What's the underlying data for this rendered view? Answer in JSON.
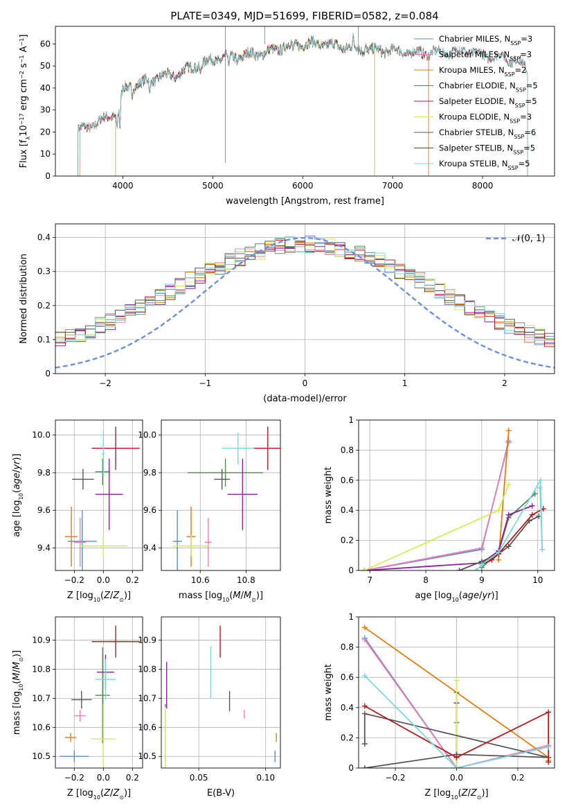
{
  "figure_title": "PLATE=0349, MJD=51699, FIBERID=0582, z=0.084",
  "colors": {
    "Chabrier MILES": "#5b8cc7",
    "Salpeter MILES": "#e97fb0",
    "Kroupa MILES": "#e07b12",
    "Chabrier ELODIE": "#4e8a52",
    "Salpeter ELODIE": "#8b1f9e",
    "Kroupa ELODIE": "#d6ea5e",
    "Chabrier STELIB": "#555555",
    "Salpeter STELIB": "#b01c1c",
    "Kroupa STELIB": "#7fd6d9"
  },
  "chart_data": [
    {
      "id": "spectrum",
      "type": "line",
      "title": "PLATE=0349, MJD=51699, FIBERID=0582, z=0.084",
      "xlabel": "wavelength [Angstrom, rest frame]",
      "ylabel": "Flux [f_λ 10^-17 erg cm^-2 s^-1 A^-1]",
      "xlim": [
        3250,
        8800
      ],
      "ylim": [
        0,
        68
      ],
      "xticks": [
        4000,
        5000,
        6000,
        7000,
        8000
      ],
      "yticks": [
        0,
        10,
        20,
        30,
        40,
        50,
        60
      ],
      "grid": false,
      "legend_position": "top-right",
      "legend": [
        {
          "label": "Chabrier MILES, N",
          "sub": "SSP",
          "tail": "=3"
        },
        {
          "label": "Salpeter MILES, N",
          "sub": "SSP",
          "tail": "=3"
        },
        {
          "label": "Kroupa MILES, N",
          "sub": "SSP",
          "tail": "=2"
        },
        {
          "label": "Chabrier ELODIE, N",
          "sub": "SSP",
          "tail": "=5"
        },
        {
          "label": "Salpeter ELODIE, N",
          "sub": "SSP",
          "tail": "=5"
        },
        {
          "label": "Kroupa ELODIE, N",
          "sub": "SSP",
          "tail": "=3"
        },
        {
          "label": "Chabrier STELIB, N",
          "sub": "SSP",
          "tail": "=6"
        },
        {
          "label": "Salpeter STELIB, N",
          "sub": "SSP",
          "tail": "=5"
        },
        {
          "label": "Kroupa STELIB, N",
          "sub": "SSP",
          "tail": "=5"
        }
      ],
      "continuum": [
        [
          3520,
          21
        ],
        [
          3600,
          22
        ],
        [
          3700,
          24
        ],
        [
          3800,
          26
        ],
        [
          3900,
          28
        ],
        [
          3950,
          29
        ],
        [
          4000,
          39
        ],
        [
          4100,
          41
        ],
        [
          4200,
          42
        ],
        [
          4400,
          45
        ],
        [
          4600,
          46
        ],
        [
          4800,
          50
        ],
        [
          4900,
          51
        ],
        [
          5000,
          53
        ],
        [
          5200,
          54
        ],
        [
          5400,
          55
        ],
        [
          5600,
          56
        ],
        [
          5800,
          59
        ],
        [
          6000,
          60
        ],
        [
          6200,
          60
        ],
        [
          6400,
          59
        ],
        [
          6600,
          58
        ],
        [
          6800,
          57
        ],
        [
          7000,
          57
        ],
        [
          7200,
          56
        ],
        [
          7400,
          56
        ],
        [
          7600,
          56
        ],
        [
          7800,
          57
        ],
        [
          8000,
          55
        ],
        [
          8200,
          54
        ],
        [
          8400,
          52
        ],
        [
          8500,
          48
        ]
      ],
      "features": [
        [
          3934,
          -7
        ],
        [
          3968,
          -10
        ],
        [
          4102,
          -5
        ],
        [
          4300,
          -7
        ],
        [
          4861,
          -4
        ],
        [
          5175,
          -6
        ],
        [
          5270,
          -3
        ],
        [
          5890,
          -4
        ],
        [
          6563,
          4
        ],
        [
          6700,
          3
        ]
      ],
      "series": [
        {
          "name": "Chabrier MILES",
          "range": [
            3500,
            7400
          ]
        },
        {
          "name": "Salpeter MILES",
          "range": [
            3500,
            7400
          ]
        },
        {
          "name": "Kroupa MILES",
          "range": [
            3520,
            7400
          ]
        },
        {
          "name": "Chabrier ELODIE",
          "range": [
            3920,
            6800
          ]
        },
        {
          "name": "Salpeter ELODIE",
          "range": [
            3920,
            6800
          ]
        },
        {
          "name": "Kroupa ELODIE",
          "range": [
            3920,
            6800
          ]
        },
        {
          "name": "Chabrier STELIB",
          "range": [
            3500,
            8500
          ]
        },
        {
          "name": "Salpeter STELIB",
          "range": [
            3500,
            8500
          ]
        },
        {
          "name": "Kroupa STELIB",
          "range": [
            3500,
            8500
          ]
        }
      ]
    },
    {
      "id": "residuals",
      "type": "area",
      "xlabel": "(data-model)/error",
      "ylabel": "Normed distribution",
      "xlim": [
        -2.5,
        2.5
      ],
      "ylim": [
        0,
        0.44
      ],
      "xticks": [
        -2,
        -1,
        0,
        1,
        2
      ],
      "xtick_labels": [
        "−2",
        "−1",
        "0",
        "1",
        "2"
      ],
      "yticks": [
        0.0,
        0.1,
        0.2,
        0.3,
        0.4
      ],
      "grid": true,
      "legend_position": "top-right",
      "legend_label": "𝒩(0, 1)",
      "normal_color": "#6a8fe0",
      "bin_width": 0.1,
      "note": "step histograms of residuals, one per model, approximately N(0,1)-like"
    },
    {
      "id": "age_vs_Z",
      "type": "scatter",
      "xlabel": "Z [log10(Z/Z⊙)]",
      "ylabel": "age  [log10(age/yr)]",
      "xlim": [
        -0.33,
        0.27
      ],
      "ylim": [
        9.28,
        10.08
      ],
      "xticks": [
        -0.2,
        0.0,
        0.2
      ],
      "xtick_labels": [
        "−0.2",
        "0.0",
        "0.2"
      ],
      "yticks": [
        9.4,
        9.6,
        9.8,
        10.0
      ],
      "yticks_labels": [
        "9.4",
        "9.6",
        "9.8",
        "10.0"
      ],
      "grid": true,
      "points": [
        {
          "series": "Chabrier MILES",
          "x": -0.145,
          "xerr": 0.1,
          "y": 9.435,
          "yerr": 0.165
        },
        {
          "series": "Salpeter MILES",
          "x": -0.16,
          "xerr": 0.04,
          "y": 9.43,
          "yerr": 0.13
        },
        {
          "series": "Kroupa MILES",
          "x": -0.22,
          "xerr": 0.045,
          "y": 9.46,
          "yerr": 0.16
        },
        {
          "series": "Chabrier ELODIE",
          "x": -0.005,
          "xerr": 0.05,
          "y": 9.805,
          "yerr": 0.07
        },
        {
          "series": "Salpeter ELODIE",
          "x": 0.04,
          "xerr": 0.095,
          "y": 9.685,
          "yerr": 0.19
        },
        {
          "series": "Kroupa ELODIE",
          "x": 0.0,
          "xerr": 0.165,
          "y": 9.41,
          "yerr": 0.055
        },
        {
          "series": "Chabrier STELIB",
          "x": -0.14,
          "xerr": 0.075,
          "y": 9.765,
          "yerr": 0.055
        },
        {
          "series": "Salpeter STELIB",
          "x": 0.085,
          "xerr": 0.165,
          "y": 9.93,
          "yerr": 0.115
        },
        {
          "series": "Kroupa STELIB",
          "x": 0.0,
          "xerr": 0.01,
          "y": 9.9,
          "yerr": 0.12
        }
      ]
    },
    {
      "id": "age_vs_mass",
      "type": "scatter",
      "xlabel": "mass [log10(M/M⊙)]",
      "ylabel": "",
      "xlim": [
        10.43,
        10.95
      ],
      "ylim": [
        9.28,
        10.08
      ],
      "xticks": [
        10.6,
        10.8
      ],
      "xtick_labels": [
        "10.6",
        "10.8"
      ],
      "yticks": [
        9.4,
        9.6,
        9.8,
        10.0
      ],
      "yticks_labels": [
        "9.4",
        "9.6",
        "9.8",
        "10.0"
      ],
      "grid": true,
      "points": [
        {
          "series": "Chabrier MILES",
          "x": 10.5,
          "xerr": 0.02,
          "y": 9.435,
          "yerr": 0.165
        },
        {
          "series": "Salpeter MILES",
          "x": 10.635,
          "xerr": 0.015,
          "y": 9.43,
          "yerr": 0.13
        },
        {
          "series": "Kroupa MILES",
          "x": 10.56,
          "xerr": 0.02,
          "y": 9.46,
          "yerr": 0.16
        },
        {
          "series": "Chabrier ELODIE",
          "x": 10.71,
          "xerr": 0.165,
          "y": 9.8,
          "yerr": 0.075
        },
        {
          "series": "Salpeter ELODIE",
          "x": 10.785,
          "xerr": 0.065,
          "y": 9.685,
          "yerr": 0.19
        },
        {
          "series": "Kroupa ELODIE",
          "x": 10.56,
          "xerr": 0.08,
          "y": 9.41,
          "yerr": 0.055
        },
        {
          "series": "Chabrier STELIB",
          "x": 10.695,
          "xerr": 0.035,
          "y": 9.765,
          "yerr": 0.055
        },
        {
          "series": "Salpeter STELIB",
          "x": 10.895,
          "xerr": 0.06,
          "y": 9.93,
          "yerr": 0.115
        },
        {
          "series": "Kroupa STELIB",
          "x": 10.765,
          "xerr": 0.07,
          "y": 9.93,
          "yerr": 0.085
        }
      ]
    },
    {
      "id": "mass_weight_vs_age",
      "type": "line",
      "xlabel": "age  [log10(age/yr)]",
      "ylabel": "mass weight",
      "xlim": [
        6.8,
        10.3
      ],
      "ylim": [
        0.0,
        1.0
      ],
      "xticks": [
        7,
        8,
        9,
        10
      ],
      "yticks": [
        0.0,
        0.2,
        0.4,
        0.6,
        0.8,
        1.0
      ],
      "grid": true,
      "series": [
        {
          "name": "Chabrier MILES",
          "x": [
            6.9,
            9.0,
            9.48
          ],
          "y": [
            0.0,
            0.14,
            0.86
          ]
        },
        {
          "name": "Salpeter MILES",
          "x": [
            6.9,
            9.0,
            9.48
          ],
          "y": [
            0.0,
            0.15,
            0.85
          ]
        },
        {
          "name": "Kroupa MILES",
          "x": [
            9.3,
            9.48
          ],
          "y": [
            0.07,
            0.93
          ]
        },
        {
          "name": "Chabrier ELODIE",
          "x": [
            9.0,
            9.3,
            9.48,
            9.95
          ],
          "y": [
            0.02,
            0.12,
            0.35,
            0.51
          ]
        },
        {
          "name": "Salpeter ELODIE",
          "x": [
            6.9,
            9.0,
            9.3,
            9.48,
            9.9
          ],
          "y": [
            0.0,
            0.05,
            0.13,
            0.37,
            0.43
          ]
        },
        {
          "name": "Kroupa ELODIE",
          "x": [
            6.9,
            9.3,
            9.48
          ],
          "y": [
            0.0,
            0.4,
            0.57
          ]
        },
        {
          "name": "Chabrier STELIB",
          "x": [
            8.6,
            9.0,
            9.3,
            9.48,
            9.85,
            10.02
          ],
          "y": [
            0.0,
            0.06,
            0.11,
            0.16,
            0.33,
            0.36
          ]
        },
        {
          "name": "Salpeter STELIB",
          "x": [
            9.0,
            9.18,
            9.3,
            9.9,
            10.1
          ],
          "y": [
            0.04,
            0.07,
            0.11,
            0.37,
            0.41
          ]
        },
        {
          "name": "Kroupa STELIB",
          "x": [
            8.9,
            9.0,
            9.3,
            10.05,
            10.08,
            10.04
          ],
          "y": [
            0.0,
            0.04,
            0.12,
            0.6,
            0.14,
            0.55
          ]
        }
      ]
    },
    {
      "id": "mass_vs_Z",
      "type": "scatter",
      "xlabel": "Z [log10(Z/Z⊙)]",
      "ylabel": "mass [log10(M/M⊙)]",
      "xlim": [
        -0.33,
        0.27
      ],
      "ylim": [
        10.46,
        10.98
      ],
      "xticks": [
        -0.2,
        0.0,
        0.2
      ],
      "xtick_labels": [
        "−0.2",
        "0.0",
        "0.2"
      ],
      "yticks": [
        10.5,
        10.6,
        10.7,
        10.8,
        10.9
      ],
      "yticks_labels": [
        "10.5",
        "10.6",
        "10.7",
        "10.8",
        "10.9"
      ],
      "grid": true,
      "points": [
        {
          "series": "Chabrier MILES",
          "x": -0.2,
          "xerr": 0.1,
          "y": 10.5,
          "yerr": 0.02
        },
        {
          "series": "Salpeter MILES",
          "x": -0.16,
          "xerr": 0.04,
          "y": 10.64,
          "yerr": 0.02
        },
        {
          "series": "Kroupa MILES",
          "x": -0.225,
          "xerr": 0.04,
          "y": 10.565,
          "yerr": 0.015
        },
        {
          "series": "Chabrier ELODIE",
          "x": -0.005,
          "xerr": 0.05,
          "y": 10.71,
          "yerr": 0.165
        },
        {
          "series": "Salpeter ELODIE",
          "x": 0.015,
          "xerr": 0.06,
          "y": 10.79,
          "yerr": 0.06
        },
        {
          "series": "Kroupa ELODIE",
          "x": 0.0,
          "xerr": 0.085,
          "y": 10.56,
          "yerr": 0.12
        },
        {
          "series": "Chabrier STELIB",
          "x": -0.15,
          "xerr": 0.07,
          "y": 10.695,
          "yerr": 0.03
        },
        {
          "series": "Salpeter STELIB",
          "x": 0.085,
          "xerr": 0.165,
          "y": 10.895,
          "yerr": 0.055
        },
        {
          "series": "Kroupa STELIB",
          "x": 0.015,
          "xerr": 0.07,
          "y": 10.765,
          "yerr": 0.07
        }
      ]
    },
    {
      "id": "mass_vs_EBV",
      "type": "scatter",
      "xlabel": "E(B-V)",
      "ylabel": "",
      "xlim": [
        0.022,
        0.111
      ],
      "ylim": [
        10.46,
        10.98
      ],
      "xticks": [
        0.05,
        0.1
      ],
      "xtick_labels": [
        "0.05",
        "0.10"
      ],
      "yticks": [
        10.5,
        10.6,
        10.7,
        10.8,
        10.9
      ],
      "yticks_labels": [
        "10.5",
        "10.6",
        "10.7",
        "10.8",
        "10.9"
      ],
      "grid": true,
      "points": [
        {
          "series": "Chabrier MILES",
          "x": 0.107,
          "xerr": 0,
          "y": 10.5,
          "yerr": 0.02
        },
        {
          "series": "Salpeter MILES",
          "x": 0.084,
          "xerr": 0,
          "y": 10.645,
          "yerr": 0.015
        },
        {
          "series": "Kroupa MILES",
          "x": 0.108,
          "xerr": 0,
          "y": 10.565,
          "yerr": 0.015
        },
        {
          "series": "Chabrier ELODIE",
          "x": 0.025,
          "xerr": 0,
          "y": 10.58,
          "yerr": 0.1
        },
        {
          "series": "Salpeter ELODIE",
          "x": 0.026,
          "xerr": 0,
          "y": 10.745,
          "yerr": 0.08
        },
        {
          "series": "Kroupa ELODIE",
          "x": 0.025,
          "xerr": 0,
          "y": 10.56,
          "yerr": 0.11
        },
        {
          "series": "Chabrier STELIB",
          "x": 0.073,
          "xerr": 0,
          "y": 10.69,
          "yerr": 0.035
        },
        {
          "series": "Salpeter STELIB",
          "x": 0.066,
          "xerr": 0,
          "y": 10.895,
          "yerr": 0.055
        },
        {
          "series": "Kroupa STELIB",
          "x": 0.059,
          "xerr": 0,
          "y": 10.79,
          "yerr": 0.09
        }
      ]
    },
    {
      "id": "mass_weight_vs_Z",
      "type": "line",
      "xlabel": "Z [log10(Z/Z⊙)]",
      "ylabel": "mass weight",
      "xlim": [
        -0.32,
        0.32
      ],
      "ylim": [
        0.0,
        1.0
      ],
      "xticks": [
        -0.2,
        0.0,
        0.2
      ],
      "xtick_labels": [
        "−0.2",
        "0.0",
        "0.2"
      ],
      "yticks": [
        0.0,
        0.2,
        0.4,
        0.6,
        0.8,
        1.0
      ],
      "grid": true,
      "series": [
        {
          "name": "Chabrier MILES",
          "x": [
            -0.3,
            0.0,
            0.3
          ],
          "y": [
            0.86,
            0.0,
            0.14
          ]
        },
        {
          "name": "Salpeter MILES",
          "x": [
            -0.3,
            0.0,
            0.3
          ],
          "y": [
            0.85,
            0.0,
            0.15
          ]
        },
        {
          "name": "Kroupa MILES",
          "x": [
            -0.3,
            0.3,
            0.3
          ],
          "y": [
            0.93,
            0.07,
            0.05
          ]
        },
        {
          "name": "Chabrier ELODIE",
          "x": [
            0.0,
            0.0,
            0.0
          ],
          "y": [
            0.0,
            0.3,
            0.5
          ]
        },
        {
          "name": "Salpeter ELODIE",
          "x": [
            0.0,
            0.0
          ],
          "y": [
            0.0,
            0.43
          ]
        },
        {
          "name": "Kroupa ELODIE",
          "x": [
            0.0,
            0.0
          ],
          "y": [
            0.0,
            0.58
          ]
        },
        {
          "name": "Chabrier STELIB",
          "x": [
            -0.3,
            0.0,
            0.3,
            -0.3,
            -0.3
          ],
          "y": [
            0.0,
            0.09,
            0.07,
            0.36,
            0.16
          ]
        },
        {
          "name": "Salpeter STELIB",
          "x": [
            -0.3,
            0.0,
            0.3,
            0.3
          ],
          "y": [
            0.41,
            0.07,
            0.37,
            0.04
          ]
        },
        {
          "name": "Kroupa STELIB",
          "x": [
            -0.3,
            0.0,
            0.3
          ],
          "y": [
            0.61,
            0.0,
            0.14
          ]
        }
      ]
    }
  ]
}
